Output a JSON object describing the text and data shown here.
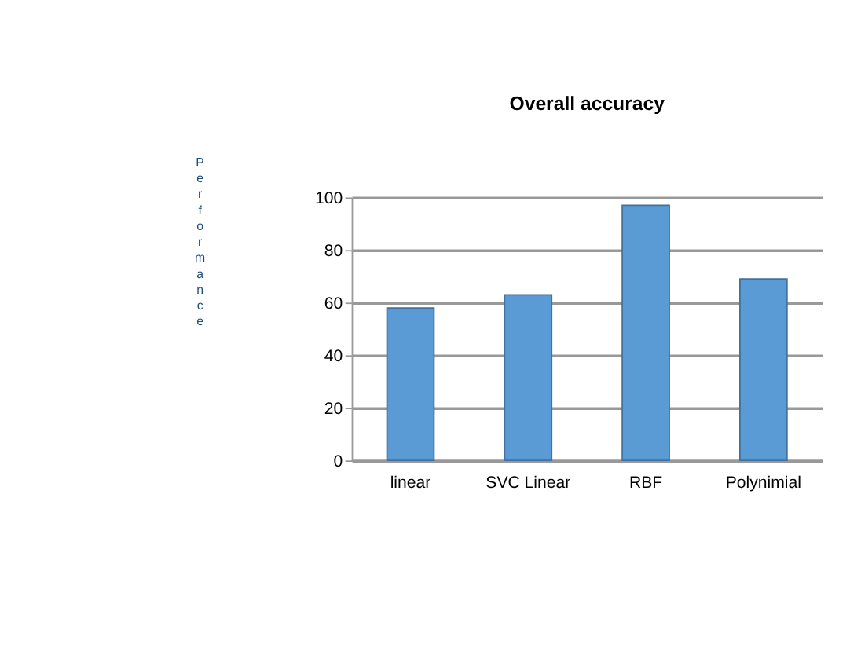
{
  "chart_data": {
    "type": "bar",
    "title": "Overall accuracy",
    "ylabel": "Performance",
    "categories": [
      "linear",
      "SVC Linear",
      "RBF",
      "Polynimial"
    ],
    "values": [
      58,
      63,
      97,
      69
    ],
    "color": "#5b9bd5",
    "ylim": [
      0,
      100
    ],
    "yticks": [
      0,
      20,
      40,
      60,
      80,
      100
    ],
    "grid": "y"
  }
}
